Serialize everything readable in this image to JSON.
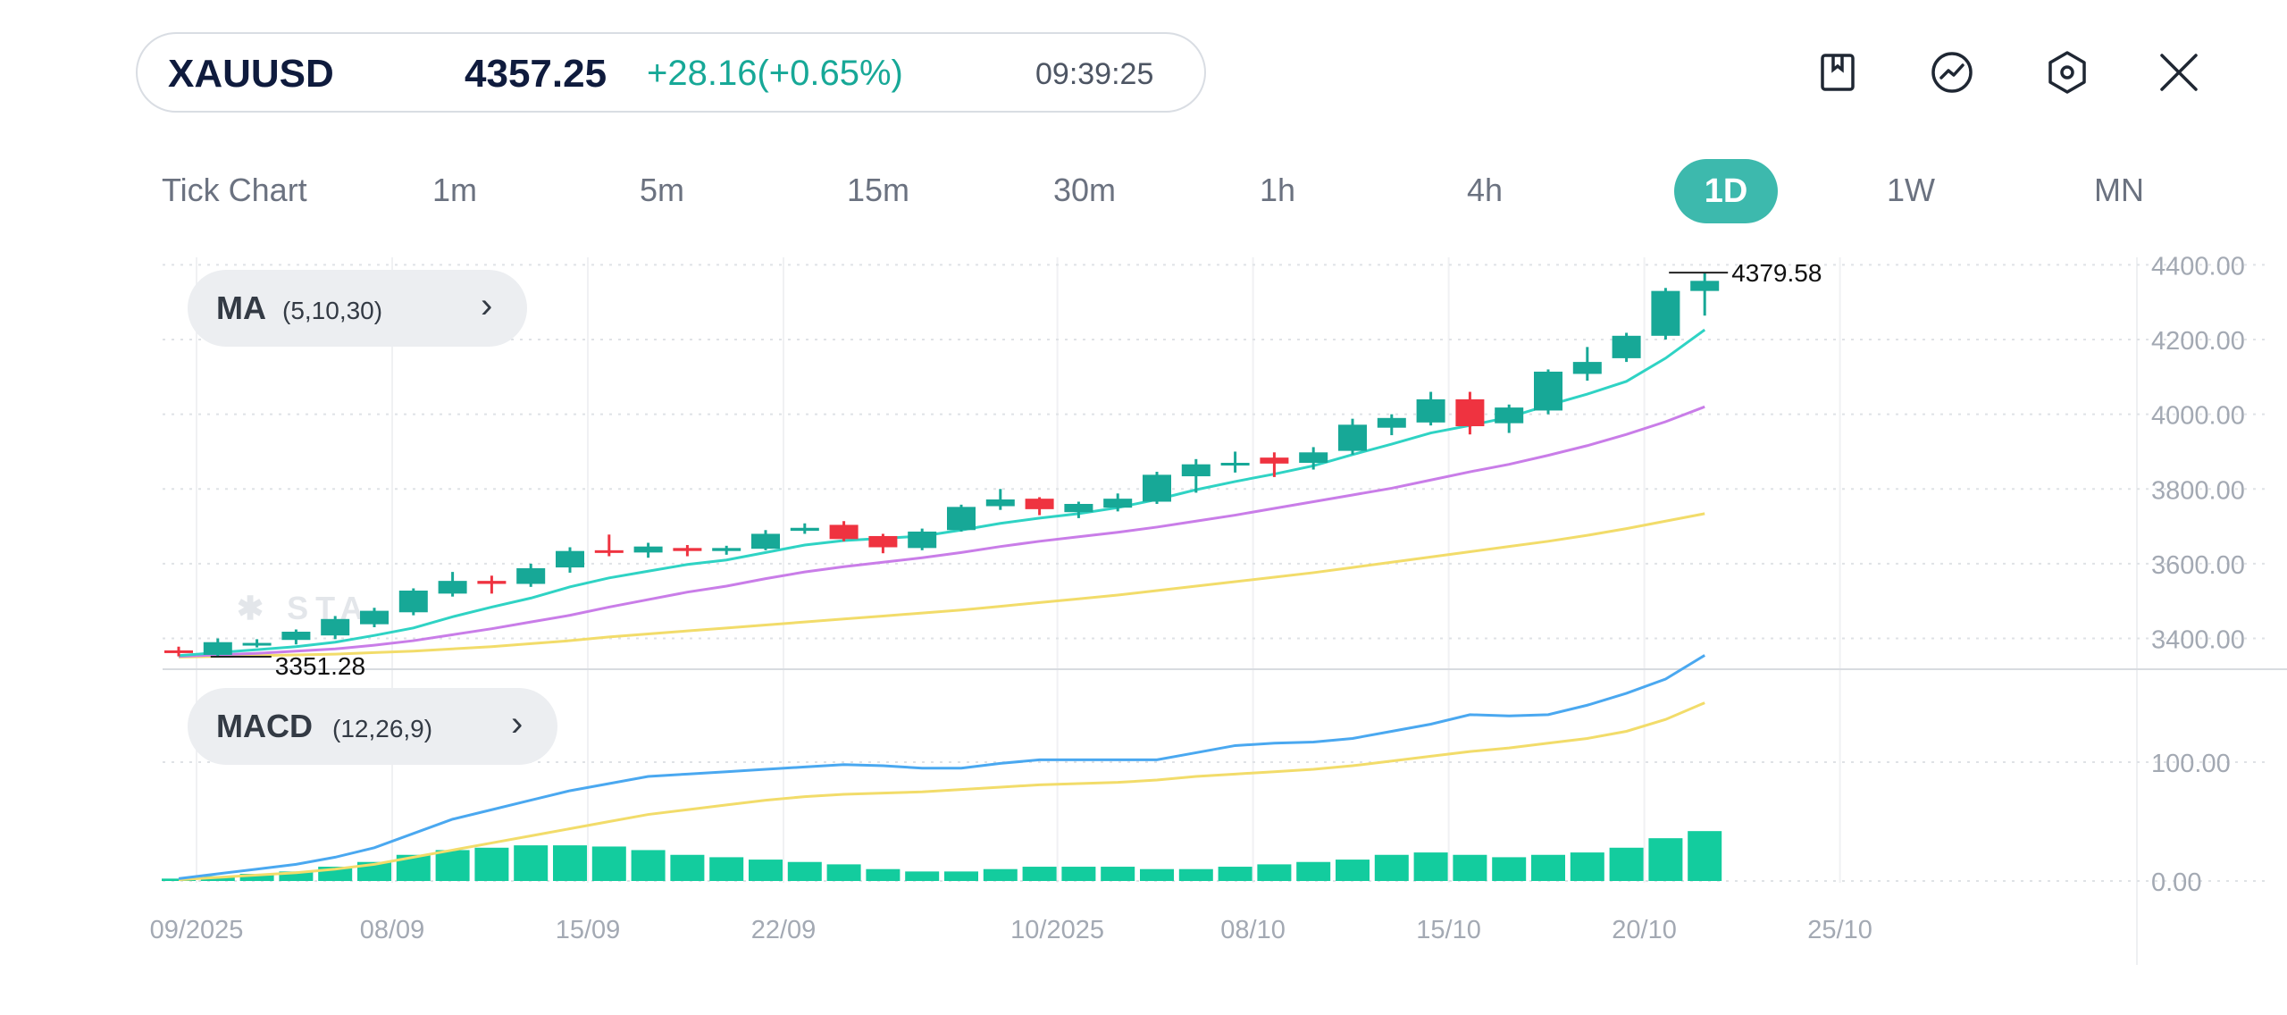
{
  "header": {
    "symbol": "XAUUSD",
    "price": "4357.25",
    "change": "+28.16(+0.65%)",
    "time": "09:39:25",
    "colors": {
      "up": "#17a897",
      "text": "#0f1b3d"
    }
  },
  "toolbar": {
    "icons": [
      "bookmark-icon",
      "indicator-chart-icon",
      "settings-hexagon-icon",
      "close-icon"
    ]
  },
  "timeframes": [
    {
      "label": "Tick Chart",
      "active": false
    },
    {
      "label": "1m",
      "active": false
    },
    {
      "label": "5m",
      "active": false
    },
    {
      "label": "15m",
      "active": false
    },
    {
      "label": "30m",
      "active": false
    },
    {
      "label": "1h",
      "active": false
    },
    {
      "label": "4h",
      "active": false
    },
    {
      "label": "1D",
      "active": true
    },
    {
      "label": "1W",
      "active": false
    },
    {
      "label": "MN",
      "active": false
    }
  ],
  "indicators": {
    "ma": {
      "name": "MA",
      "params": "(5,10,30)"
    },
    "macd": {
      "name": "MACD",
      "params": "(12,26,9)"
    }
  },
  "chart_data": {
    "type": "candlestick",
    "colors": {
      "up": "#17a897",
      "down": "#ef3340",
      "ma5": "#2fd3c4",
      "ma10": "#c97de8",
      "ma30": "#f2dc6a",
      "dif": "#4aa8f0",
      "dea": "#f2dc6a",
      "hist": "#13cc9e"
    },
    "price_axis": {
      "ticks": [
        "4400.00",
        "4200.00",
        "4000.00",
        "3800.00",
        "3600.00",
        "3400.00"
      ],
      "range": [
        3320,
        4420
      ]
    },
    "high_label": "4379.58",
    "low_label": "3351.28",
    "x_labels": [
      "09/2025",
      "08/09",
      "15/09",
      "22/09",
      "10/2025",
      "08/10",
      "15/10",
      "20/10",
      "25/10"
    ],
    "x_label_index": [
      0,
      5,
      10,
      15,
      22,
      27,
      32,
      37,
      42
    ],
    "candles": [
      {
        "o": 3368,
        "h": 3378,
        "l": 3352,
        "c": 3364
      },
      {
        "o": 3356,
        "h": 3400,
        "l": 3351,
        "c": 3390
      },
      {
        "o": 3386,
        "h": 3398,
        "l": 3376,
        "c": 3388
      },
      {
        "o": 3396,
        "h": 3424,
        "l": 3384,
        "c": 3418
      },
      {
        "o": 3408,
        "h": 3460,
        "l": 3398,
        "c": 3452
      },
      {
        "o": 3438,
        "h": 3482,
        "l": 3430,
        "c": 3474
      },
      {
        "o": 3470,
        "h": 3534,
        "l": 3462,
        "c": 3528
      },
      {
        "o": 3520,
        "h": 3578,
        "l": 3512,
        "c": 3554
      },
      {
        "o": 3554,
        "h": 3568,
        "l": 3520,
        "c": 3546
      },
      {
        "o": 3546,
        "h": 3600,
        "l": 3538,
        "c": 3588
      },
      {
        "o": 3590,
        "h": 3644,
        "l": 3576,
        "c": 3634
      },
      {
        "o": 3636,
        "h": 3678,
        "l": 3620,
        "c": 3630
      },
      {
        "o": 3630,
        "h": 3656,
        "l": 3616,
        "c": 3646
      },
      {
        "o": 3642,
        "h": 3650,
        "l": 3620,
        "c": 3634
      },
      {
        "o": 3634,
        "h": 3648,
        "l": 3624,
        "c": 3642
      },
      {
        "o": 3640,
        "h": 3690,
        "l": 3636,
        "c": 3680
      },
      {
        "o": 3688,
        "h": 3708,
        "l": 3680,
        "c": 3696
      },
      {
        "o": 3704,
        "h": 3714,
        "l": 3660,
        "c": 3666
      },
      {
        "o": 3674,
        "h": 3680,
        "l": 3628,
        "c": 3644
      },
      {
        "o": 3642,
        "h": 3694,
        "l": 3636,
        "c": 3686
      },
      {
        "o": 3690,
        "h": 3758,
        "l": 3686,
        "c": 3752
      },
      {
        "o": 3754,
        "h": 3800,
        "l": 3744,
        "c": 3772
      },
      {
        "o": 3774,
        "h": 3778,
        "l": 3730,
        "c": 3746
      },
      {
        "o": 3738,
        "h": 3766,
        "l": 3722,
        "c": 3760
      },
      {
        "o": 3750,
        "h": 3788,
        "l": 3740,
        "c": 3774
      },
      {
        "o": 3766,
        "h": 3846,
        "l": 3760,
        "c": 3838
      },
      {
        "o": 3834,
        "h": 3880,
        "l": 3790,
        "c": 3866
      },
      {
        "o": 3864,
        "h": 3900,
        "l": 3844,
        "c": 3870
      },
      {
        "o": 3884,
        "h": 3898,
        "l": 3832,
        "c": 3868
      },
      {
        "o": 3870,
        "h": 3912,
        "l": 3852,
        "c": 3898
      },
      {
        "o": 3902,
        "h": 3988,
        "l": 3892,
        "c": 3972
      },
      {
        "o": 3964,
        "h": 4000,
        "l": 3944,
        "c": 3990
      },
      {
        "o": 3978,
        "h": 4060,
        "l": 3970,
        "c": 4040
      },
      {
        "o": 4040,
        "h": 4060,
        "l": 3946,
        "c": 3968
      },
      {
        "o": 3976,
        "h": 4026,
        "l": 3950,
        "c": 4018
      },
      {
        "o": 4010,
        "h": 4120,
        "l": 4000,
        "c": 4114
      },
      {
        "o": 4108,
        "h": 4180,
        "l": 4090,
        "c": 4140
      },
      {
        "o": 4150,
        "h": 4218,
        "l": 4140,
        "c": 4210
      },
      {
        "o": 4210,
        "h": 4338,
        "l": 4200,
        "c": 4330
      },
      {
        "o": 4330,
        "h": 4379,
        "l": 4264,
        "c": 4357
      }
    ],
    "ma5": [
      3354,
      3362,
      3370,
      3378,
      3390,
      3408,
      3428,
      3458,
      3484,
      3508,
      3538,
      3562,
      3580,
      3598,
      3610,
      3630,
      3650,
      3662,
      3668,
      3674,
      3690,
      3708,
      3722,
      3734,
      3750,
      3772,
      3798,
      3820,
      3840,
      3862,
      3892,
      3920,
      3950,
      3970,
      3992,
      4024,
      4054,
      4088,
      4150,
      4226
    ],
    "ma10": [
      3352,
      3356,
      3360,
      3366,
      3372,
      3382,
      3394,
      3410,
      3426,
      3444,
      3462,
      3484,
      3504,
      3524,
      3540,
      3560,
      3578,
      3592,
      3604,
      3616,
      3630,
      3646,
      3660,
      3672,
      3684,
      3698,
      3714,
      3730,
      3748,
      3766,
      3784,
      3802,
      3824,
      3846,
      3866,
      3890,
      3916,
      3946,
      3980,
      4020
    ],
    "ma30": [
      3350,
      3352,
      3354,
      3356,
      3358,
      3362,
      3366,
      3372,
      3378,
      3386,
      3394,
      3404,
      3412,
      3420,
      3428,
      3436,
      3444,
      3452,
      3460,
      3468,
      3476,
      3486,
      3496,
      3506,
      3516,
      3528,
      3540,
      3552,
      3564,
      3576,
      3590,
      3604,
      3618,
      3632,
      3646,
      3660,
      3676,
      3694,
      3714,
      3734
    ],
    "macd_axis": {
      "ticks": [
        "100.00",
        "0.00"
      ],
      "range": [
        0,
        170
      ]
    },
    "dif": [
      2,
      6,
      10,
      14,
      20,
      28,
      40,
      52,
      60,
      68,
      76,
      82,
      88,
      90,
      92,
      94,
      96,
      98,
      97,
      95,
      95,
      99,
      102,
      102,
      102,
      102,
      108,
      114,
      116,
      117,
      120,
      126,
      132,
      140,
      139,
      140,
      148,
      158,
      170,
      190
    ],
    "dea": [
      1,
      3,
      5,
      7,
      10,
      14,
      20,
      26,
      32,
      38,
      44,
      50,
      56,
      60,
      64,
      68,
      71,
      73,
      74,
      75,
      77,
      79,
      81,
      82,
      83,
      85,
      88,
      90,
      92,
      94,
      97,
      101,
      105,
      109,
      112,
      116,
      120,
      126,
      136,
      150
    ],
    "hist": [
      2,
      4,
      6,
      8,
      12,
      16,
      22,
      26,
      28,
      30,
      30,
      29,
      26,
      22,
      20,
      18,
      16,
      14,
      10,
      8,
      8,
      10,
      12,
      12,
      12,
      10,
      10,
      12,
      14,
      16,
      18,
      22,
      24,
      22,
      20,
      22,
      24,
      28,
      36,
      42
    ]
  }
}
